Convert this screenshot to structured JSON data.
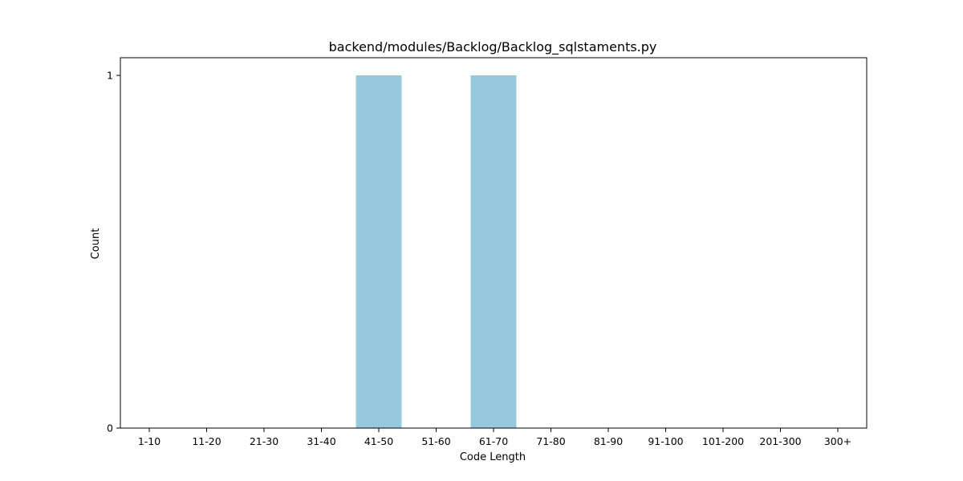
{
  "chart_data": {
    "type": "bar",
    "title": "backend/modules/Backlog/Backlog_sqlstaments.py",
    "xlabel": "Code Length",
    "ylabel": "Count",
    "categories": [
      "1-10",
      "11-20",
      "21-30",
      "31-40",
      "41-50",
      "51-60",
      "61-70",
      "71-80",
      "81-90",
      "91-100",
      "101-200",
      "201-300",
      "300+"
    ],
    "values": [
      0,
      0,
      0,
      0,
      1,
      0,
      1,
      0,
      0,
      0,
      0,
      0,
      0
    ],
    "ylim": [
      0,
      1
    ],
    "yticks": [
      "0",
      "1"
    ],
    "grid": false,
    "bar_color": "#96c9dc"
  }
}
